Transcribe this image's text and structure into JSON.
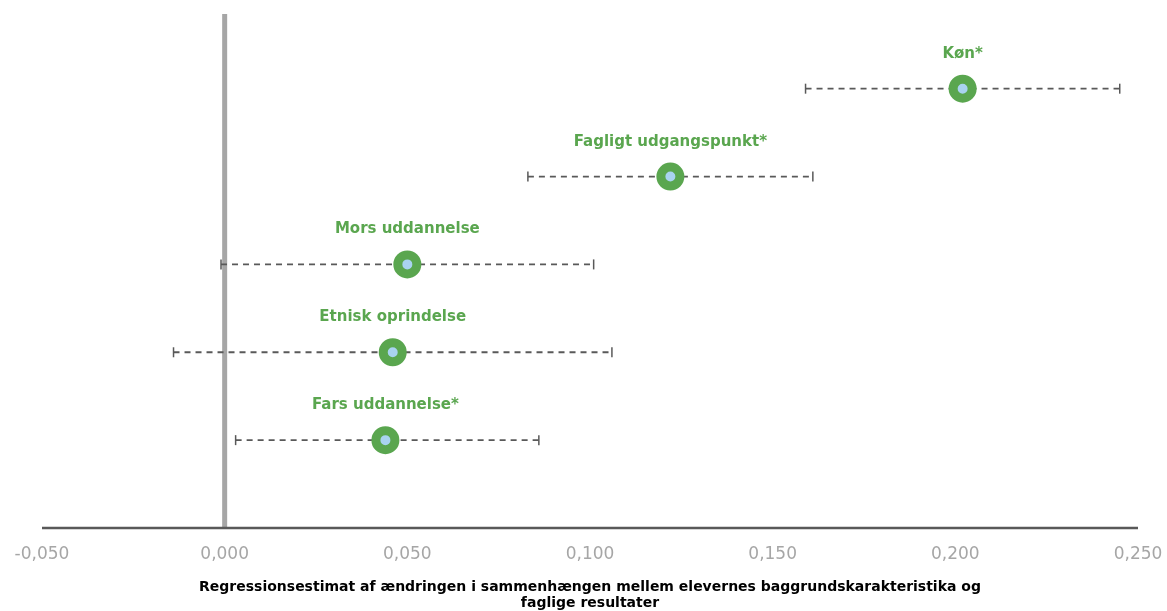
{
  "chart_data": {
    "type": "scatter",
    "orientation": "horizontal",
    "categories": [
      null,
      null,
      null,
      null,
      null
    ],
    "series": [
      {
        "name": "Køn*",
        "color": "#5aa64f",
        "values": [
          0.202,
          null,
          null,
          null,
          null
        ],
        "errors": [
          [
            0.159,
            0.245
          ],
          null,
          null,
          null,
          null
        ]
      },
      {
        "name": "Fagligt udgangspunkt*",
        "color": "#5aa64f",
        "values": [
          null,
          0.122,
          null,
          null,
          null
        ],
        "errors": [
          null,
          [
            0.083,
            0.161
          ],
          null,
          null,
          null
        ]
      },
      {
        "name": "Mors uddannelse",
        "color": "#5aa64f",
        "values": [
          null,
          null,
          0.05,
          null,
          null
        ],
        "errors": [
          null,
          null,
          [
            -0.001,
            0.101
          ],
          null,
          null
        ]
      },
      {
        "name": "Etnisk oprindelse",
        "color": "#5aa64f",
        "values": [
          null,
          null,
          null,
          0.046,
          null
        ],
        "errors": [
          null,
          null,
          null,
          [
            -0.014,
            0.106
          ],
          null
        ]
      },
      {
        "name": "Fars uddannelse*",
        "color": "#5aa64f",
        "values": [
          null,
          null,
          null,
          null,
          0.044
        ],
        "errors": [
          null,
          null,
          null,
          null,
          [
            0.003,
            0.086
          ]
        ]
      }
    ],
    "marker": "circle",
    "xlim": [
      -0.05,
      0.25
    ],
    "xticks": [
      {
        "value": -0.05,
        "label": "-0,050"
      },
      {
        "value": 0,
        "label": "0,000"
      },
      {
        "value": 0.05,
        "label": "0,050"
      },
      {
        "value": 0.1,
        "label": "0,100"
      },
      {
        "value": 0.15,
        "label": "0,150"
      },
      {
        "value": 0.2,
        "label": "0,200"
      },
      {
        "value": 0.25,
        "label": "0,250"
      }
    ],
    "xlabel": "Regressionsestimat af ændringen i sammenhængen mellem elevernes baggrundskarakteristika og faglige resultater",
    "ref_lines": [
      {
        "axis": "x",
        "value": 0,
        "color": "#a6a6a6"
      }
    ],
    "tick_labels": "x",
    "grid": false
  }
}
